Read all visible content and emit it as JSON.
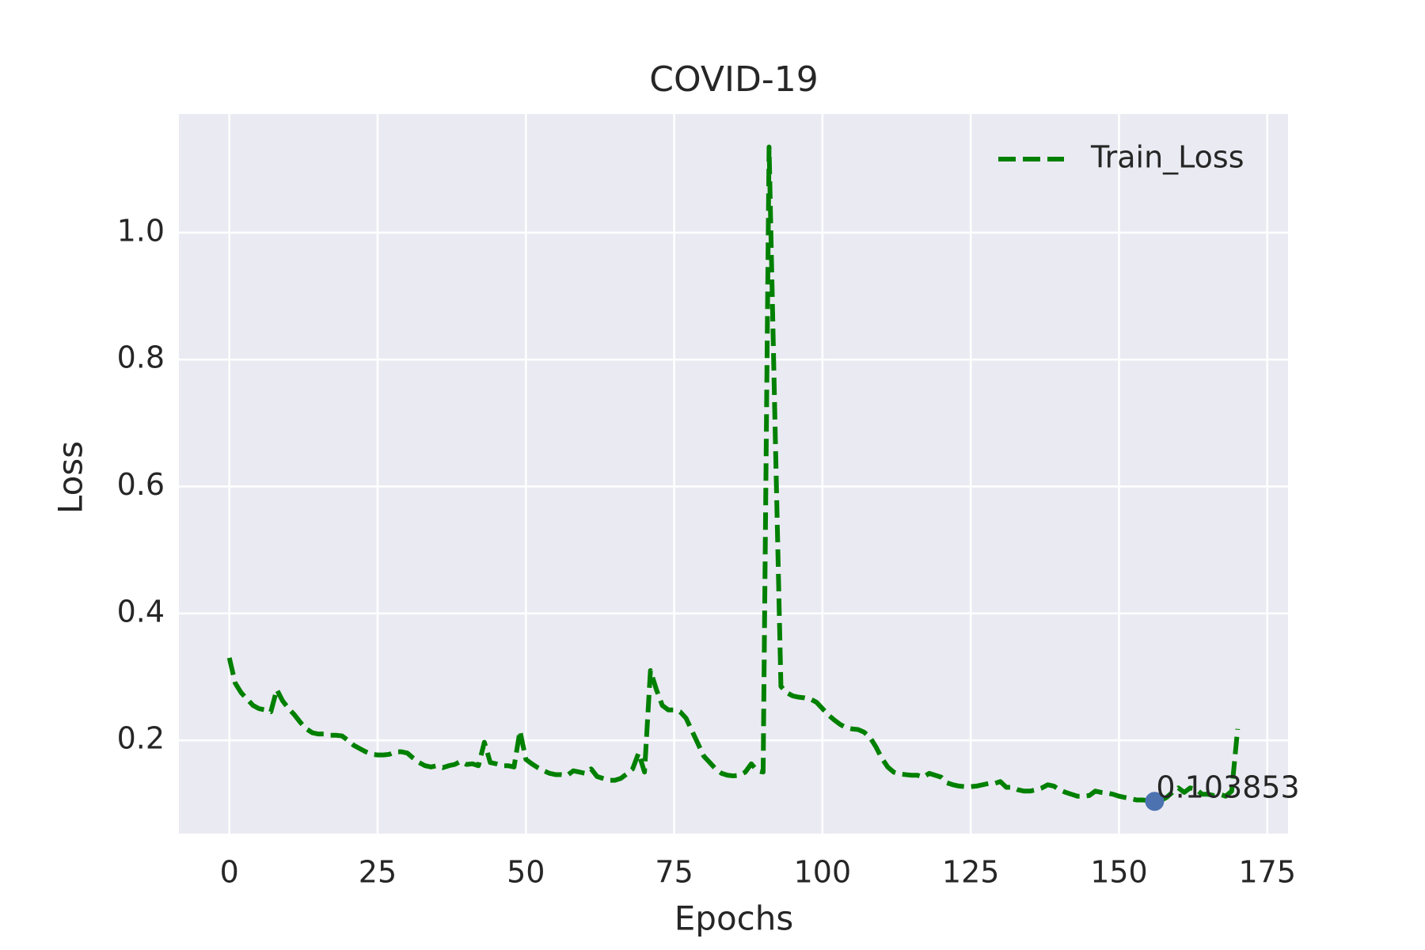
{
  "chart_data": {
    "type": "line",
    "title": "COVID-19",
    "xlabel": "Epochs",
    "ylabel": "Loss",
    "x": [
      0,
      1,
      2,
      3,
      4,
      5,
      6,
      7,
      8,
      9,
      10,
      11,
      12,
      13,
      14,
      15,
      16,
      17,
      18,
      19,
      20,
      21,
      22,
      23,
      24,
      25,
      26,
      27,
      28,
      29,
      30,
      31,
      32,
      33,
      34,
      35,
      36,
      37,
      38,
      39,
      40,
      41,
      42,
      43,
      44,
      45,
      46,
      47,
      48,
      49,
      50,
      51,
      52,
      53,
      54,
      55,
      56,
      57,
      58,
      59,
      60,
      61,
      62,
      63,
      64,
      65,
      66,
      67,
      68,
      69,
      70,
      71,
      72,
      73,
      74,
      75,
      76,
      77,
      78,
      79,
      80,
      81,
      82,
      83,
      84,
      85,
      86,
      87,
      88,
      89,
      90,
      91,
      92,
      93,
      94,
      95,
      96,
      97,
      98,
      99,
      100,
      101,
      102,
      103,
      104,
      105,
      106,
      107,
      108,
      109,
      110,
      111,
      112,
      113,
      114,
      115,
      116,
      117,
      118,
      119,
      120,
      121,
      122,
      123,
      124,
      125,
      126,
      127,
      128,
      129,
      130,
      131,
      132,
      133,
      134,
      135,
      136,
      137,
      138,
      139,
      140,
      141,
      142,
      143,
      144,
      145,
      146,
      147,
      148,
      149,
      150,
      151,
      152,
      153,
      154,
      155,
      156,
      157,
      158,
      159,
      160,
      161,
      162,
      163,
      164,
      165,
      166,
      167,
      168,
      169,
      170
    ],
    "series": [
      {
        "name": "Train_Loss",
        "color": "#008000",
        "values": [
          0.33,
          0.29,
          0.275,
          0.265,
          0.255,
          0.25,
          0.248,
          0.245,
          0.28,
          0.262,
          0.25,
          0.24,
          0.228,
          0.218,
          0.212,
          0.21,
          0.21,
          0.208,
          0.208,
          0.207,
          0.2,
          0.192,
          0.187,
          0.182,
          0.178,
          0.177,
          0.177,
          0.178,
          0.182,
          0.182,
          0.18,
          0.172,
          0.165,
          0.16,
          0.158,
          0.16,
          0.157,
          0.16,
          0.162,
          0.167,
          0.162,
          0.163,
          0.16,
          0.197,
          0.165,
          0.163,
          0.16,
          0.16,
          0.158,
          0.215,
          0.17,
          0.163,
          0.157,
          0.152,
          0.148,
          0.146,
          0.146,
          0.145,
          0.152,
          0.15,
          0.148,
          0.155,
          0.143,
          0.14,
          0.137,
          0.137,
          0.14,
          0.147,
          0.155,
          0.18,
          0.15,
          0.31,
          0.28,
          0.255,
          0.248,
          0.248,
          0.245,
          0.235,
          0.215,
          0.195,
          0.175,
          0.165,
          0.155,
          0.148,
          0.145,
          0.144,
          0.145,
          0.15,
          0.163,
          0.152,
          0.15,
          1.135,
          0.7,
          0.285,
          0.275,
          0.27,
          0.268,
          0.267,
          0.265,
          0.26,
          0.25,
          0.24,
          0.232,
          0.225,
          0.22,
          0.218,
          0.217,
          0.213,
          0.205,
          0.19,
          0.172,
          0.158,
          0.15,
          0.147,
          0.146,
          0.145,
          0.145,
          0.142,
          0.148,
          0.145,
          0.142,
          0.133,
          0.13,
          0.128,
          0.127,
          0.127,
          0.128,
          0.13,
          0.132,
          0.132,
          0.135,
          0.126,
          0.126,
          0.122,
          0.12,
          0.12,
          0.122,
          0.125,
          0.13,
          0.128,
          0.122,
          0.118,
          0.115,
          0.112,
          0.112,
          0.113,
          0.12,
          0.118,
          0.117,
          0.115,
          0.112,
          0.11,
          0.108,
          0.106,
          0.106,
          0.105,
          0.103853,
          0.105,
          0.11,
          0.118,
          0.125,
          0.118,
          0.125,
          0.123,
          0.115,
          0.115,
          0.113,
          0.115,
          0.112,
          0.12,
          0.218
        ]
      }
    ],
    "annotation": {
      "x": 156,
      "y": 0.103853,
      "text": "0.103853",
      "color": "#4c72b0"
    },
    "xlim": [
      -8.5,
      178.5
    ],
    "ylim": [
      0.053,
      1.187
    ],
    "xticks": [
      0,
      25,
      50,
      75,
      100,
      125,
      150,
      175
    ],
    "yticks": [
      0.2,
      0.4,
      0.6,
      0.8,
      {
        "value": 1,
        "label": "1.0"
      }
    ],
    "grid": true,
    "legend": "upper right"
  }
}
